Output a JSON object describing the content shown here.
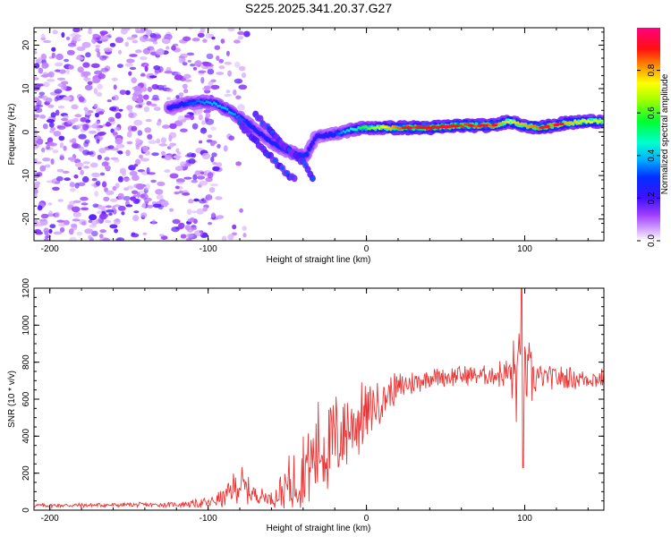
{
  "title": "S225.2025.341.20.37.G27",
  "chart_data": [
    {
      "type": "heatmap",
      "xlabel": "Height of straight line (km)",
      "ylabel": "Frequency (Hz)",
      "xlim": [
        -210,
        150
      ],
      "ylim": [
        -25,
        24
      ],
      "xticks": [
        -200,
        -100,
        0,
        100
      ],
      "yticks": [
        -20,
        -10,
        0,
        10,
        20
      ],
      "colorbar": {
        "label": "Normalized spectral amplitude",
        "range": [
          0,
          1
        ],
        "ticks": [
          "0.0",
          "0.2",
          "0.4",
          "0.6",
          "0.8"
        ]
      },
      "ridge": [
        {
          "x": -125,
          "f": 5.5,
          "a": 0.25
        },
        {
          "x": -115,
          "f": 6.5,
          "a": 0.3
        },
        {
          "x": -105,
          "f": 7,
          "a": 0.35
        },
        {
          "x": -95,
          "f": 6.5,
          "a": 0.4
        },
        {
          "x": -85,
          "f": 4.5,
          "a": 0.38
        },
        {
          "x": -75,
          "f": 2,
          "a": 0.3
        },
        {
          "x": -65,
          "f": -1,
          "a": 0.28
        },
        {
          "x": -55,
          "f": -3.5,
          "a": 0.3
        },
        {
          "x": -45,
          "f": -5,
          "a": 0.32
        },
        {
          "x": -38,
          "f": -5.5,
          "a": 0.3
        },
        {
          "x": -32,
          "f": -1,
          "a": 0.25
        },
        {
          "x": -20,
          "f": -0.5,
          "a": 0.3
        },
        {
          "x": -10,
          "f": 0.5,
          "a": 0.45
        },
        {
          "x": 0,
          "f": 1,
          "a": 0.6
        },
        {
          "x": 20,
          "f": 1,
          "a": 0.85
        },
        {
          "x": 40,
          "f": 1,
          "a": 0.9
        },
        {
          "x": 60,
          "f": 1.5,
          "a": 0.88
        },
        {
          "x": 80,
          "f": 1.5,
          "a": 0.85
        },
        {
          "x": 90,
          "f": 2.5,
          "a": 0.75
        },
        {
          "x": 100,
          "f": 1.5,
          "a": 0.8
        },
        {
          "x": 110,
          "f": 1,
          "a": 0.85
        },
        {
          "x": 125,
          "f": 2,
          "a": 0.8
        },
        {
          "x": 140,
          "f": 2.5,
          "a": 0.75
        },
        {
          "x": 150,
          "f": 2.5,
          "a": 0.7
        }
      ],
      "secondary_ridges": [
        [
          {
            "x": -80,
            "f": 2
          },
          {
            "x": -70,
            "f": -2
          },
          {
            "x": -60,
            "f": -6
          },
          {
            "x": -52,
            "f": -9
          },
          {
            "x": -45,
            "f": -11
          }
        ],
        [
          {
            "x": -70,
            "f": 4
          },
          {
            "x": -60,
            "f": 0
          },
          {
            "x": -50,
            "f": -4
          },
          {
            "x": -40,
            "f": -7
          },
          {
            "x": -33,
            "f": -11
          }
        ]
      ],
      "noise_region": {
        "x_from": -210,
        "x_to": -95,
        "f_from": -25,
        "f_to": 24,
        "amplitude_max": 0.15
      }
    },
    {
      "type": "line",
      "xlabel": "Height of straight line (km)",
      "ylabel": "SNR (10 * v/v)",
      "xlim": [
        -210,
        150
      ],
      "ylim": [
        0,
        1200
      ],
      "xticks": [
        -200,
        -100,
        0,
        100
      ],
      "yticks": [
        0,
        200,
        400,
        600,
        800,
        1000,
        1200
      ],
      "color": "#ee3333",
      "envelope": [
        {
          "x": -210,
          "base": 25,
          "amp": 12
        },
        {
          "x": -120,
          "base": 30,
          "amp": 15
        },
        {
          "x": -100,
          "base": 40,
          "amp": 30
        },
        {
          "x": -90,
          "base": 70,
          "amp": 60
        },
        {
          "x": -80,
          "base": 140,
          "amp": 120
        },
        {
          "x": -72,
          "base": 90,
          "amp": 60
        },
        {
          "x": -60,
          "base": 60,
          "amp": 40
        },
        {
          "x": -50,
          "base": 120,
          "amp": 160
        },
        {
          "x": -40,
          "base": 220,
          "amp": 240
        },
        {
          "x": -30,
          "base": 320,
          "amp": 300
        },
        {
          "x": -20,
          "base": 380,
          "amp": 280
        },
        {
          "x": -10,
          "base": 460,
          "amp": 260
        },
        {
          "x": 0,
          "base": 520,
          "amp": 180
        },
        {
          "x": 10,
          "base": 600,
          "amp": 120
        },
        {
          "x": 20,
          "base": 660,
          "amp": 90
        },
        {
          "x": 40,
          "base": 720,
          "amp": 60
        },
        {
          "x": 80,
          "base": 735,
          "amp": 60
        },
        {
          "x": 90,
          "base": 740,
          "amp": 120
        },
        {
          "x": 95,
          "base": 720,
          "amp": 350
        },
        {
          "x": 100,
          "base": 720,
          "amp": 250
        },
        {
          "x": 110,
          "base": 720,
          "amp": 70
        },
        {
          "x": 150,
          "base": 710,
          "amp": 60
        }
      ],
      "peaks": [
        {
          "x": 98,
          "y": 1200
        },
        {
          "x": 98.8,
          "y": 230
        }
      ]
    }
  ]
}
